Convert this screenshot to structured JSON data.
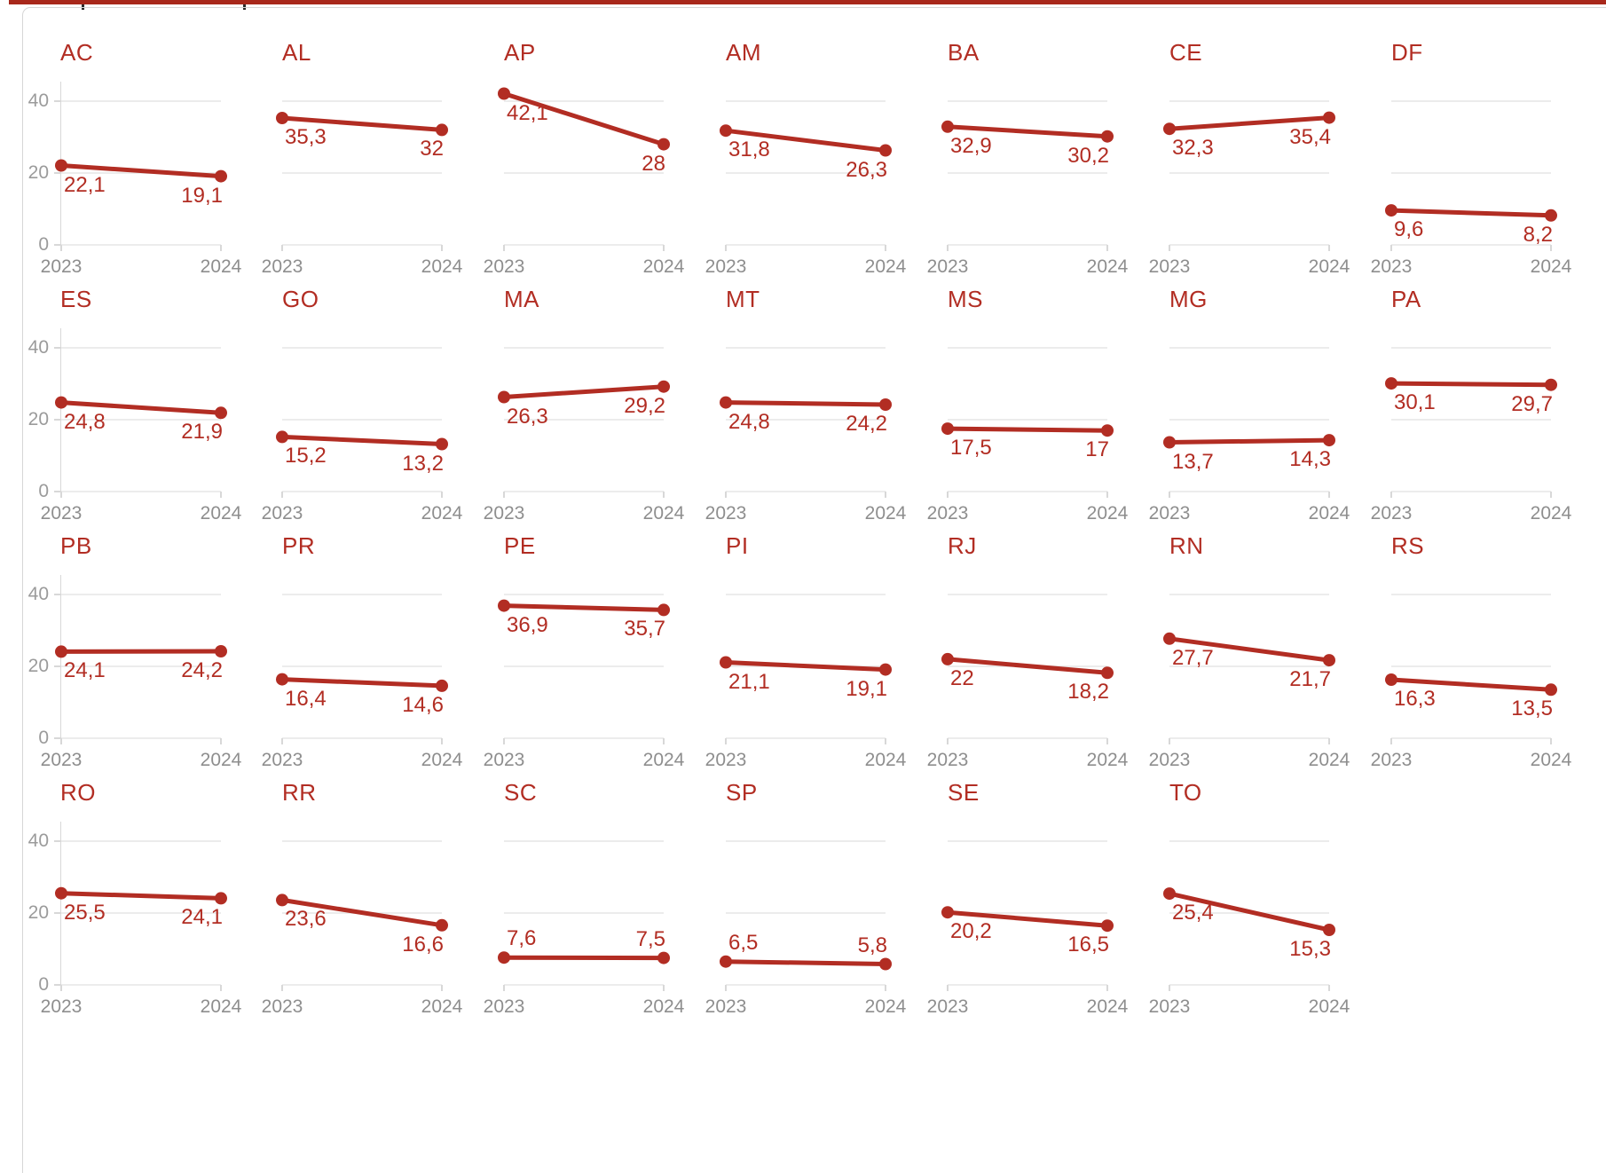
{
  "chrome": {
    "tab_bar_color": "#a8281b",
    "cutoff_mark_color": "#2a2a2a",
    "cutoff_mark_x": [
      92,
      274
    ],
    "panel_border_color": "#d6d6d6"
  },
  "chart_data": {
    "type": "line",
    "title": "",
    "layout": "facet-grid small multiples, 7 columns, 27 panels (Brazilian states), y axis labels only on first column, grid on",
    "x": [
      "2023",
      "2024"
    ],
    "ylim": [
      0,
      45
    ],
    "yticks": [
      40,
      20,
      0
    ],
    "ytick_labels": [
      "40",
      "20",
      "0"
    ],
    "colors": {
      "series": "#b22d23",
      "gridline": "#ececec",
      "axis": "#d8d8d8",
      "ytick_label": "#9b9b9b",
      "xtick_label": "#8e8e8e"
    },
    "facets": [
      {
        "state": "AC",
        "values": [
          22.1,
          19.1
        ],
        "labels": [
          "22,1",
          "19,1"
        ],
        "label_pos": "below"
      },
      {
        "state": "AL",
        "values": [
          35.3,
          32
        ],
        "labels": [
          "35,3",
          "32"
        ],
        "label_pos": "below"
      },
      {
        "state": "AP",
        "values": [
          42.1,
          28
        ],
        "labels": [
          "42,1",
          "28"
        ],
        "label_pos": "below"
      },
      {
        "state": "AM",
        "values": [
          31.8,
          26.3
        ],
        "labels": [
          "31,8",
          "26,3"
        ],
        "label_pos": "below"
      },
      {
        "state": "BA",
        "values": [
          32.9,
          30.2
        ],
        "labels": [
          "32,9",
          "30,2"
        ],
        "label_pos": "below"
      },
      {
        "state": "CE",
        "values": [
          32.3,
          35.4
        ],
        "labels": [
          "32,3",
          "35,4"
        ],
        "label_pos": "below"
      },
      {
        "state": "DF",
        "values": [
          9.6,
          8.2
        ],
        "labels": [
          "9,6",
          "8,2"
        ],
        "label_pos": "below"
      },
      {
        "state": "ES",
        "values": [
          24.8,
          21.9
        ],
        "labels": [
          "24,8",
          "21,9"
        ],
        "label_pos": "below"
      },
      {
        "state": "GO",
        "values": [
          15.2,
          13.2
        ],
        "labels": [
          "15,2",
          "13,2"
        ],
        "label_pos": "below"
      },
      {
        "state": "MA",
        "values": [
          26.3,
          29.2
        ],
        "labels": [
          "26,3",
          "29,2"
        ],
        "label_pos": "below"
      },
      {
        "state": "MT",
        "values": [
          24.8,
          24.2
        ],
        "labels": [
          "24,8",
          "24,2"
        ],
        "label_pos": "below"
      },
      {
        "state": "MS",
        "values": [
          17.5,
          17
        ],
        "labels": [
          "17,5",
          "17"
        ],
        "label_pos": "below"
      },
      {
        "state": "MG",
        "values": [
          13.7,
          14.3
        ],
        "labels": [
          "13,7",
          "14,3"
        ],
        "label_pos": "below"
      },
      {
        "state": "PA",
        "values": [
          30.1,
          29.7
        ],
        "labels": [
          "30,1",
          "29,7"
        ],
        "label_pos": "below"
      },
      {
        "state": "PB",
        "values": [
          24.1,
          24.2
        ],
        "labels": [
          "24,1",
          "24,2"
        ],
        "label_pos": "below"
      },
      {
        "state": "PR",
        "values": [
          16.4,
          14.6
        ],
        "labels": [
          "16,4",
          "14,6"
        ],
        "label_pos": "below"
      },
      {
        "state": "PE",
        "values": [
          36.9,
          35.7
        ],
        "labels": [
          "36,9",
          "35,7"
        ],
        "label_pos": "below"
      },
      {
        "state": "PI",
        "values": [
          21.1,
          19.1
        ],
        "labels": [
          "21,1",
          "19,1"
        ],
        "label_pos": "below"
      },
      {
        "state": "RJ",
        "values": [
          22,
          18.2
        ],
        "labels": [
          "22",
          "18,2"
        ],
        "label_pos": "below"
      },
      {
        "state": "RN",
        "values": [
          27.7,
          21.7
        ],
        "labels": [
          "27,7",
          "21,7"
        ],
        "label_pos": "below"
      },
      {
        "state": "RS",
        "values": [
          16.3,
          13.5
        ],
        "labels": [
          "16,3",
          "13,5"
        ],
        "label_pos": "below"
      },
      {
        "state": "RO",
        "values": [
          25.5,
          24.1
        ],
        "labels": [
          "25,5",
          "24,1"
        ],
        "label_pos": "below"
      },
      {
        "state": "RR",
        "values": [
          23.6,
          16.6
        ],
        "labels": [
          "23,6",
          "16,6"
        ],
        "label_pos": "below"
      },
      {
        "state": "SC",
        "values": [
          7.6,
          7.5
        ],
        "labels": [
          "7,6",
          "7,5"
        ],
        "label_pos": "above"
      },
      {
        "state": "SP",
        "values": [
          6.5,
          5.8
        ],
        "labels": [
          "6,5",
          "5,8"
        ],
        "label_pos": "above"
      },
      {
        "state": "SE",
        "values": [
          20.2,
          16.5
        ],
        "labels": [
          "20,2",
          "16,5"
        ],
        "label_pos": "below"
      },
      {
        "state": "TO",
        "values": [
          25.4,
          15.3
        ],
        "labels": [
          "25,4",
          "15,3"
        ],
        "label_pos": "below"
      }
    ]
  }
}
